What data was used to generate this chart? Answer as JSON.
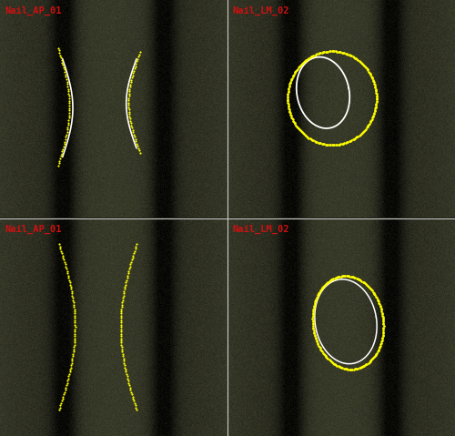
{
  "fig_width": 5.0,
  "fig_height": 4.79,
  "dpi": 100,
  "panel_labels": [
    "Nail_AP_01",
    "Nail_LM_02",
    "Nail_AP_01",
    "Nail_LM_02"
  ],
  "label_color": "#cc1111",
  "label_fontsize": 7.5,
  "divider_color": "#cccccc",
  "white_color": "#ffffff",
  "yellow_color": "#ffff00"
}
